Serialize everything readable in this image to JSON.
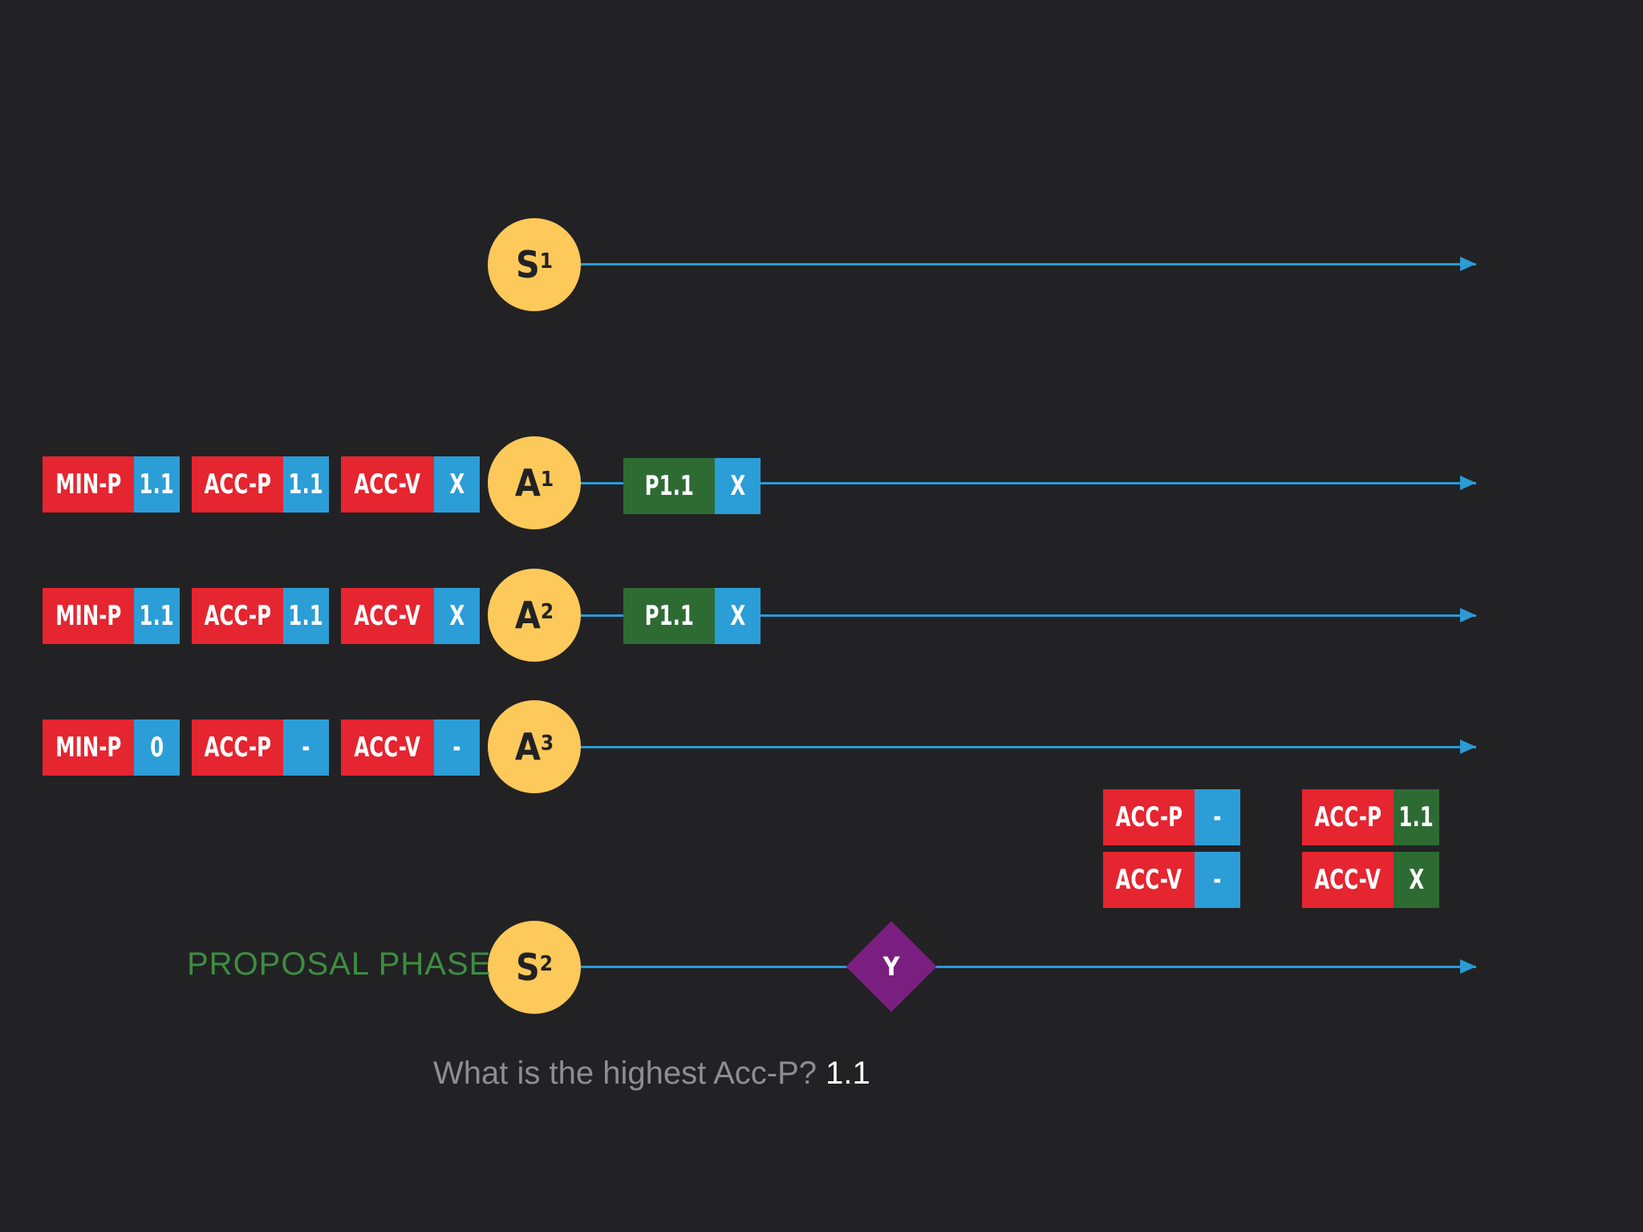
{
  "nodes": {
    "s1": {
      "letter": "S",
      "index": "1"
    },
    "a1": {
      "letter": "A",
      "index": "1"
    },
    "a2": {
      "letter": "A",
      "index": "2"
    },
    "a3": {
      "letter": "A",
      "index": "3"
    },
    "s2": {
      "letter": "S",
      "index": "2"
    }
  },
  "a1_state": {
    "min_p": {
      "key": "MIN-P",
      "value": "1.1"
    },
    "acc_p": {
      "key": "ACC-P",
      "value": "1.1"
    },
    "acc_v": {
      "key": "ACC-V",
      "value": "X"
    }
  },
  "a2_state": {
    "min_p": {
      "key": "MIN-P",
      "value": "1.1"
    },
    "acc_p": {
      "key": "ACC-P",
      "value": "1.1"
    },
    "acc_v": {
      "key": "ACC-V",
      "value": "X"
    }
  },
  "a3_state": {
    "min_p": {
      "key": "MIN-P",
      "value": "0"
    },
    "acc_p": {
      "key": "ACC-P",
      "value": "-"
    },
    "acc_v": {
      "key": "ACC-V",
      "value": "-"
    }
  },
  "a1_message": {
    "key": "P1.1",
    "value": "X"
  },
  "a2_message": {
    "key": "P1.1",
    "value": "X"
  },
  "s2_before": {
    "acc_p": {
      "key": "ACC-P",
      "value": "-"
    },
    "acc_v": {
      "key": "ACC-V",
      "value": "-"
    }
  },
  "s2_after": {
    "acc_p": {
      "key": "ACC-P",
      "value": "1.1"
    },
    "acc_v": {
      "key": "ACC-V",
      "value": "X"
    }
  },
  "s2_value": "Y",
  "phase_label": "PROPOSAL PHASE",
  "question": {
    "text": "What is the highest Acc-P?",
    "answer": "1.1"
  },
  "colors": {
    "background": "#222224",
    "node": "#fdc95a",
    "timeline": "#2b9bd6",
    "key": "#e52530",
    "value": "#2b9dd7",
    "message": "#2e6b33",
    "diamond": "#7a1f80",
    "phase": "#3d8d41"
  }
}
